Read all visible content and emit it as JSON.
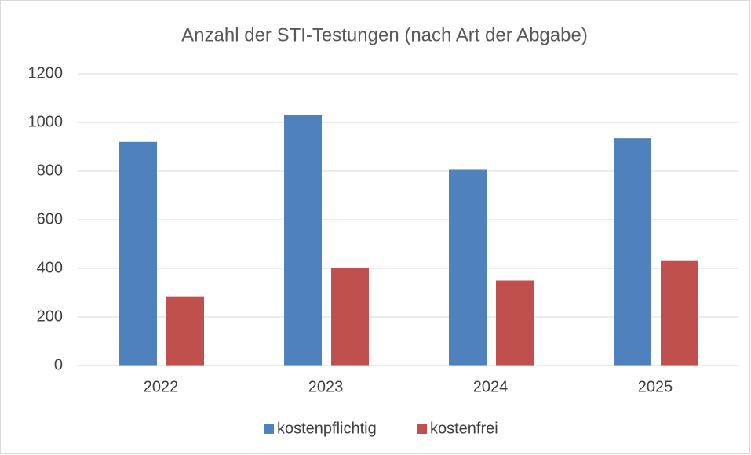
{
  "chart_data": {
    "type": "bar",
    "title": "Anzahl der STI-Testungen (nach Art der Abgabe)",
    "categories": [
      "2022",
      "2023",
      "2024",
      "2025"
    ],
    "series": [
      {
        "name": "kostenpflichtig",
        "color": "#4f81bd",
        "values": [
          920,
          1030,
          805,
          935
        ]
      },
      {
        "name": "kostenfrei",
        "color": "#c0504d",
        "values": [
          285,
          400,
          350,
          430
        ]
      }
    ],
    "ylim": [
      0,
      1200
    ],
    "yticks": [
      0,
      200,
      400,
      600,
      800,
      1000,
      1200
    ],
    "grid": true,
    "legend": "bottom"
  }
}
